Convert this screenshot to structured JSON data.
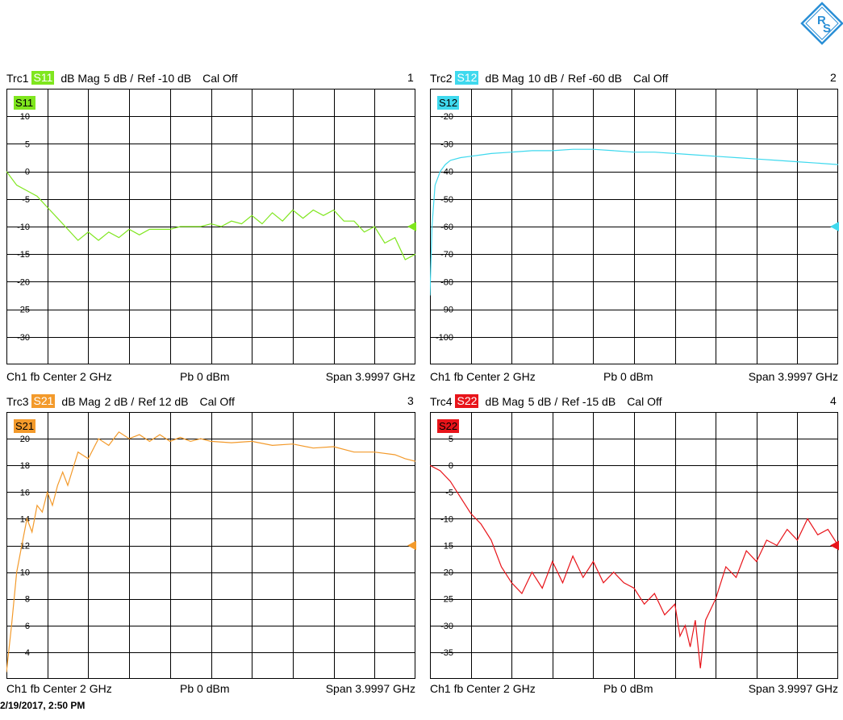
{
  "timestamp": "2/19/2017, 2:50 PM",
  "chart_data": [
    {
      "type": "line",
      "trace": "Trc1",
      "param": "S11",
      "format": "dB Mag",
      "scale": "5 dB /",
      "ref": "Ref -10 dB",
      "cal": "Cal Off",
      "window": "1",
      "color": "#7fe61e",
      "footer": {
        "left": "Ch1  fb  Center  2 GHz",
        "mid": "Pb   0 dBm",
        "right": "Span  3.9997 GHz"
      },
      "ylim": [
        -35,
        15
      ],
      "ref_value": -10,
      "yticks": [
        10,
        5,
        0,
        -5,
        -10,
        -15,
        -20,
        -25,
        -30
      ],
      "x_ghz": [
        0.0,
        0.1,
        0.2,
        0.3,
        0.4,
        0.5,
        0.6,
        0.7,
        0.8,
        0.9,
        1.0,
        1.1,
        1.2,
        1.3,
        1.4,
        1.5,
        1.6,
        1.7,
        1.8,
        1.9,
        2.0,
        2.1,
        2.2,
        2.3,
        2.4,
        2.5,
        2.6,
        2.7,
        2.8,
        2.9,
        3.0,
        3.1,
        3.2,
        3.3,
        3.4,
        3.5,
        3.6,
        3.7,
        3.8,
        3.9,
        4.0
      ],
      "values": [
        0,
        -2.5,
        -3.5,
        -4.5,
        -6.5,
        -8.5,
        -10.5,
        -12.5,
        -11,
        -12.5,
        -11,
        -12,
        -10.5,
        -11.5,
        -10.5,
        -10.5,
        -10.5,
        -10,
        -10,
        -10,
        -9.5,
        -10,
        -9,
        -9.5,
        -8,
        -9.5,
        -7.5,
        -9,
        -7,
        -8.5,
        -7,
        -8,
        -7,
        -9,
        -9,
        -11,
        -10,
        -13,
        -12,
        -16,
        -15
      ]
    },
    {
      "type": "line",
      "trace": "Trc2",
      "param": "S12",
      "format": "dB Mag",
      "scale": "10 dB /",
      "ref": "Ref -60 dB",
      "cal": "Cal Off",
      "window": "2",
      "color": "#3fd9ee",
      "footer": {
        "left": "Ch1  fb  Center  2 GHz",
        "mid": "Pb   0 dBm",
        "right": "Span  3.9997 GHz"
      },
      "ylim": [
        -110,
        -10
      ],
      "ref_value": -60,
      "yticks": [
        -20,
        -30,
        -40,
        -50,
        -60,
        -70,
        -80,
        -90,
        -100
      ],
      "x_ghz": [
        0.0,
        0.02,
        0.05,
        0.1,
        0.15,
        0.2,
        0.3,
        0.4,
        0.5,
        0.6,
        0.8,
        1.0,
        1.2,
        1.4,
        1.6,
        1.8,
        2.0,
        2.2,
        2.4,
        2.6,
        2.8,
        3.0,
        3.2,
        3.4,
        3.6,
        3.8,
        4.0
      ],
      "values": [
        -85,
        -60,
        -45,
        -40,
        -37.5,
        -36,
        -35,
        -34.5,
        -34,
        -33.5,
        -33,
        -32.5,
        -32.5,
        -32,
        -32,
        -32.5,
        -33,
        -33,
        -33.5,
        -34,
        -34.5,
        -35,
        -35.5,
        -36,
        -36.5,
        -37,
        -37.5
      ]
    },
    {
      "type": "line",
      "trace": "Trc3",
      "param": "S21",
      "format": "dB Mag",
      "scale": "2 dB /",
      "ref": "Ref 12 dB",
      "cal": "Cal Off",
      "window": "3",
      "color": "#f39a2b",
      "footer": {
        "left": "Ch1  fb  Center  2 GHz",
        "mid": "Pb   0 dBm",
        "right": "Span  3.9997 GHz"
      },
      "ylim": [
        2,
        22
      ],
      "ref_value": 12,
      "yticks": [
        20,
        18,
        16,
        14,
        12,
        10,
        8,
        6,
        4
      ],
      "x_ghz": [
        0.0,
        0.05,
        0.1,
        0.15,
        0.2,
        0.25,
        0.3,
        0.35,
        0.4,
        0.45,
        0.5,
        0.55,
        0.6,
        0.7,
        0.8,
        0.9,
        1.0,
        1.1,
        1.2,
        1.3,
        1.4,
        1.5,
        1.6,
        1.7,
        1.8,
        1.9,
        2.0,
        2.2,
        2.4,
        2.6,
        2.8,
        3.0,
        3.2,
        3.4,
        3.6,
        3.8,
        3.9,
        4.0
      ],
      "values": [
        2.5,
        6,
        10,
        12,
        14,
        13,
        15,
        14.5,
        16,
        15,
        16.5,
        17.5,
        16.5,
        19,
        18.5,
        20,
        19.5,
        20.5,
        20,
        20.3,
        19.8,
        20.3,
        19.8,
        20.1,
        19.8,
        20,
        19.8,
        19.7,
        19.8,
        19.5,
        19.6,
        19.3,
        19.4,
        19,
        19,
        18.8,
        18.5,
        18.3
      ]
    },
    {
      "type": "line",
      "trace": "Trc4",
      "param": "S22",
      "format": "dB Mag",
      "scale": "5 dB /",
      "ref": "Ref -15 dB",
      "cal": "Cal Off",
      "window": "4",
      "color": "#e8141a",
      "footer": {
        "left": "Ch1  fb  Center  2 GHz",
        "mid": "Pb   0 dBm",
        "right": "Span  3.9997 GHz"
      },
      "ylim": [
        -40,
        10
      ],
      "ref_value": -15,
      "yticks": [
        5,
        0,
        -5,
        -10,
        -15,
        -20,
        -25,
        -30,
        -35
      ],
      "x_ghz": [
        0.0,
        0.1,
        0.2,
        0.3,
        0.4,
        0.5,
        0.6,
        0.7,
        0.8,
        0.9,
        1.0,
        1.1,
        1.2,
        1.3,
        1.4,
        1.5,
        1.6,
        1.7,
        1.8,
        1.9,
        2.0,
        2.1,
        2.2,
        2.3,
        2.4,
        2.45,
        2.5,
        2.55,
        2.6,
        2.65,
        2.7,
        2.8,
        2.9,
        3.0,
        3.1,
        3.2,
        3.3,
        3.4,
        3.5,
        3.6,
        3.7,
        3.8,
        3.9,
        4.0
      ],
      "values": [
        0,
        -1,
        -3,
        -6,
        -9,
        -11,
        -14,
        -19,
        -22,
        -24,
        -20,
        -23,
        -18,
        -22,
        -17,
        -21,
        -18,
        -22,
        -20,
        -22,
        -23,
        -26,
        -24,
        -28,
        -26,
        -32,
        -30,
        -34,
        -29,
        -38,
        -29,
        -25,
        -19,
        -21,
        -16,
        -18,
        -14,
        -15,
        -12,
        -14,
        -10,
        -13,
        -12,
        -15
      ]
    }
  ]
}
